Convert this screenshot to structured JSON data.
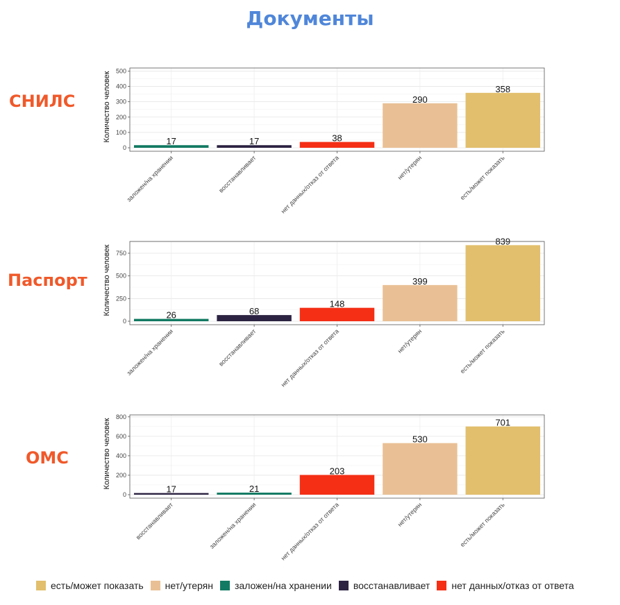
{
  "page": {
    "title": "Документы",
    "title_color": "#4f86d9",
    "label_color": "#f0592a"
  },
  "colors": {
    "есть/может показать": "#e2bf6d",
    "нет/утерян": "#e9c095",
    "заложен/на хранении": "#127a62",
    "восстанавливает": "#2c2342",
    "нет данных/отказ от ответа": "#f42f16"
  },
  "legend": [
    {
      "label": "есть/может показать",
      "color": "#e2bf6d"
    },
    {
      "label": "нет/утерян",
      "color": "#e9c095"
    },
    {
      "label": "заложен/на хранении",
      "color": "#127a62"
    },
    {
      "label": "восстанавливает",
      "color": "#2c2342"
    },
    {
      "label": "нет данных/отказ от ответа",
      "color": "#f42f16"
    }
  ],
  "chart_data": [
    {
      "type": "bar",
      "label": "СНИЛС",
      "ylabel": "Количество человек",
      "ylim": [
        0,
        520
      ],
      "yticks": [
        0,
        100,
        200,
        300,
        400,
        500
      ],
      "categories": [
        "заложен/на хранении",
        "восстанавливает",
        "нет данных/отказ от ответа",
        "нет/утерян",
        "есть/может показать"
      ],
      "values": [
        17,
        17,
        38,
        290,
        358
      ],
      "grid": true
    },
    {
      "type": "bar",
      "label": "Паспорт",
      "ylabel": "Количество человек",
      "ylim": [
        0,
        880
      ],
      "yticks": [
        0,
        250,
        500,
        750
      ],
      "categories": [
        "заложен/на хранении",
        "восстанавливает",
        "нет данных/отказ от ответа",
        "нет/утерян",
        "есть/может показать"
      ],
      "values": [
        26,
        68,
        148,
        399,
        839
      ],
      "grid": true
    },
    {
      "type": "bar",
      "label": "ОМС",
      "ylabel": "Количество человек",
      "ylim": [
        0,
        820
      ],
      "yticks": [
        0,
        200,
        400,
        600,
        800
      ],
      "categories": [
        "восстанавливает",
        "заложен/на хранении",
        "нет данных/отказ от ответа",
        "нет/утерян",
        "есть/может показать"
      ],
      "values": [
        17,
        21,
        203,
        530,
        701
      ],
      "grid": true
    }
  ]
}
